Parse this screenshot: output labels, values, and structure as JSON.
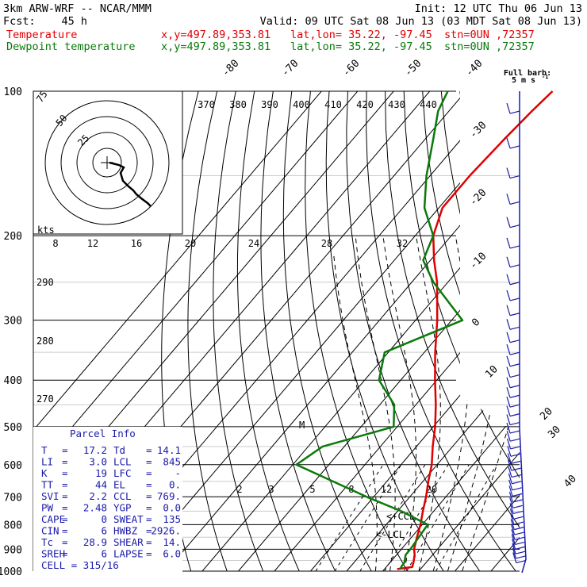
{
  "header": {
    "model": "3km ARW-WRF -- NCAR/MMM",
    "init": "Init: 12 UTC Thu 06 Jun 13",
    "fcst_label": "Fcst:",
    "fcst_value": "45 h",
    "valid": "Valid: 09 UTC Sat 08 Jun 13 (03 MDT Sat 08 Jun 13)",
    "temp_label": "Temperature",
    "dew_label": "Dewpoint temperature",
    "xy": "x,y=497.89,353.81",
    "latlon": "lat,lon= 35.22, -97.45",
    "stn": "stn=0UN ,72357"
  },
  "colors": {
    "temperature": "#e00000",
    "dewpoint": "#0a7a0a",
    "parcel_text": "#1a1aaa",
    "wind_barbs": "#1a1aaa",
    "grid": "#000000"
  },
  "full_barb_label": "Full barb:",
  "full_barb_value": "5 m s",
  "hodograph": {
    "ring_labels": [
      "75",
      "50",
      "25"
    ],
    "units": "kts"
  },
  "parcel_info": {
    "title": "Parcel Info",
    "rows": [
      {
        "k1": "T",
        "v1": "17.2",
        "k2": "Td",
        "v2": "14.1"
      },
      {
        "k1": "LI",
        "v1": "3.0",
        "k2": "LCL",
        "v2": "845"
      },
      {
        "k1": "K",
        "v1": "19",
        "k2": "LFC",
        "v2": "-"
      },
      {
        "k1": "TT",
        "v1": "44",
        "k2": "EL",
        "v2": "0."
      },
      {
        "k1": "SVI",
        "v1": "2.2",
        "k2": "CCL",
        "v2": "769."
      },
      {
        "k1": "PW",
        "v1": "2.48",
        "k2": "YGP",
        "v2": "0.0"
      },
      {
        "k1": "CAPE",
        "v1": "0",
        "k2": "SWEAT",
        "v2": "135"
      },
      {
        "k1": "CIN",
        "v1": "6",
        "k2": "HWBZ",
        "v2": "2926."
      },
      {
        "k1": "Tc",
        "v1": "28.9",
        "k2": "SHEAR",
        "v2": "14."
      },
      {
        "k1": "SREH",
        "v1": "6",
        "k2": "LAPSE",
        "v2": "6.0"
      }
    ],
    "cell": "CELL = 315/16"
  },
  "level_marks": {
    "ccl": "CCL",
    "lcl": "LCL",
    "m": "M"
  },
  "chart_data": {
    "type": "skew-t log-p sounding",
    "y_axis": "pressure (hPa), log scale",
    "ylim": [
      1000,
      100
    ],
    "pressure_ticks": [
      100,
      200,
      300,
      400,
      500,
      600,
      700,
      800,
      900,
      1000
    ],
    "isotherm_labels": [
      "-80",
      "-70",
      "-60",
      "-50",
      "-40",
      "-30",
      "-20",
      "-10",
      "0",
      "10",
      "20",
      "30",
      "40"
    ],
    "theta_labels": [
      "370",
      "380",
      "390",
      "400",
      "410",
      "420",
      "430",
      "440"
    ],
    "mixing_ratio_labels": [
      "8",
      "12",
      "16",
      "20",
      "24",
      "28",
      "32"
    ],
    "lower_mixing_labels": [
      "2",
      "3",
      "5",
      "8",
      "12",
      "20"
    ],
    "dry_adiabat_side_labels": [
      "290",
      "280",
      "270"
    ],
    "series": [
      {
        "name": "Temperature",
        "unit": "C",
        "points": [
          [
            990,
            13.5
          ],
          [
            980,
            17.2
          ],
          [
            960,
            16.5
          ],
          [
            925,
            15.0
          ],
          [
            900,
            13.5
          ],
          [
            850,
            11.5
          ],
          [
            800,
            9.5
          ],
          [
            750,
            7.0
          ],
          [
            700,
            4.5
          ],
          [
            650,
            1.5
          ],
          [
            600,
            -1.5
          ],
          [
            550,
            -5.5
          ],
          [
            500,
            -9.5
          ],
          [
            450,
            -14.5
          ],
          [
            400,
            -20.5
          ],
          [
            350,
            -27
          ],
          [
            300,
            -34
          ],
          [
            250,
            -43
          ],
          [
            225,
            -49
          ],
          [
            200,
            -55
          ],
          [
            175,
            -59
          ],
          [
            150,
            -59
          ],
          [
            125,
            -58
          ],
          [
            110,
            -57
          ],
          [
            100,
            -56
          ]
        ]
      },
      {
        "name": "Dewpoint temperature",
        "unit": "C",
        "points": [
          [
            990,
            14.5
          ],
          [
            980,
            14.1
          ],
          [
            960,
            14.0
          ],
          [
            925,
            12.5
          ],
          [
            900,
            12.5
          ],
          [
            850,
            12.0
          ],
          [
            800,
            11.5
          ],
          [
            750,
            1.0
          ],
          [
            700,
            -12
          ],
          [
            650,
            -25
          ],
          [
            600,
            -39
          ],
          [
            550,
            -36
          ],
          [
            500,
            -21
          ],
          [
            450,
            -26
          ],
          [
            400,
            -36
          ],
          [
            350,
            -41
          ],
          [
            300,
            -27
          ],
          [
            250,
            -44
          ],
          [
            225,
            -52
          ],
          [
            200,
            -55
          ],
          [
            175,
            -64
          ],
          [
            150,
            -71
          ],
          [
            125,
            -78
          ],
          [
            110,
            -83
          ],
          [
            100,
            -85
          ]
        ]
      }
    ],
    "wind_profile": {
      "units": "m/s",
      "note": "barbs along right edge, 1000-100 hPa"
    }
  }
}
